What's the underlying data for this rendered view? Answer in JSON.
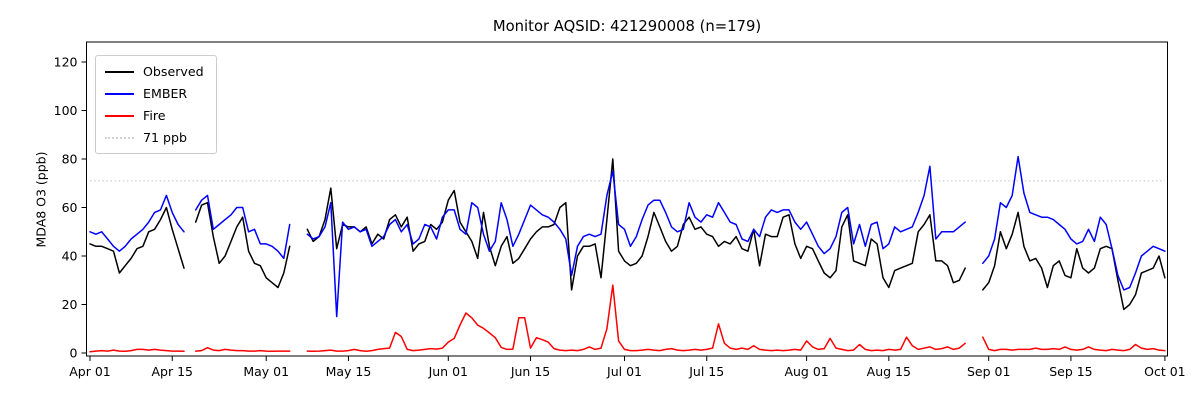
{
  "title": "Monitor AQSID: 421290008 (n=179)",
  "ylabel": "MDA8 O3 (ppb)",
  "legend": {
    "items": [
      {
        "label": "Observed",
        "color": "#000000",
        "style": "solid"
      },
      {
        "label": "EMBER",
        "color": "#0000ff",
        "style": "solid"
      },
      {
        "label": "Fire",
        "color": "#ff0000",
        "style": "solid"
      },
      {
        "label": "71 ppb",
        "color": "#d3d3d3",
        "style": "dotted"
      }
    ]
  },
  "chart_data": {
    "type": "line",
    "title": "Monitor AQSID: 421290008 (n=179)",
    "xlabel": "",
    "ylabel": "MDA8 O3 (ppb)",
    "ylim": [
      -2,
      129
    ],
    "grid": false,
    "legend_position": "upper left",
    "y_ticks": [
      0,
      20,
      40,
      60,
      80,
      100,
      120
    ],
    "x_ticks": [
      {
        "day": 0,
        "label": "Apr 01"
      },
      {
        "day": 14,
        "label": "Apr 15"
      },
      {
        "day": 30,
        "label": "May 01"
      },
      {
        "day": 44,
        "label": "May 15"
      },
      {
        "day": 61,
        "label": "Jun 01"
      },
      {
        "day": 75,
        "label": "Jun 15"
      },
      {
        "day": 91,
        "label": "Jul 01"
      },
      {
        "day": 105,
        "label": "Jul 15"
      },
      {
        "day": 122,
        "label": "Aug 01"
      },
      {
        "day": 136,
        "label": "Aug 15"
      },
      {
        "day": 153,
        "label": "Sep 01"
      },
      {
        "day": 167,
        "label": "Sep 15"
      },
      {
        "day": 183,
        "label": "Oct 01"
      }
    ],
    "threshold": {
      "value": 71,
      "label": "71 ppb",
      "color": "#d3d3d3",
      "style": "dotted"
    },
    "x_start_label": "Apr 01",
    "x_end_label": "Oct 01",
    "days_span": 183,
    "missing_days_note": "gaps at days 17, 35-36, 150-151",
    "series": [
      {
        "name": "Observed",
        "color": "#000000",
        "values": [
          45,
          44,
          44,
          43,
          42,
          33,
          36,
          39,
          43,
          44,
          50,
          51,
          55,
          60,
          51,
          43,
          35,
          null,
          54,
          61,
          62,
          48,
          37,
          40,
          46,
          52,
          56,
          42,
          37,
          36,
          31,
          29,
          27,
          33,
          44,
          null,
          null,
          51,
          46,
          48,
          55,
          68,
          43,
          53,
          52,
          52,
          50,
          52,
          45,
          49,
          47,
          55,
          57,
          52,
          56,
          42,
          45,
          46,
          53,
          51,
          54,
          63,
          67,
          54,
          50,
          46,
          39,
          58,
          44,
          36,
          44,
          48,
          37,
          39,
          43,
          47,
          50,
          52,
          52,
          53,
          60,
          62,
          26,
          40,
          44,
          44,
          45,
          31,
          55,
          80,
          42,
          38,
          36,
          37,
          40,
          48,
          58,
          52,
          46,
          42,
          44,
          53,
          56,
          51,
          52,
          49,
          48,
          44,
          46,
          45,
          48,
          43,
          42,
          51,
          36,
          49,
          48,
          48,
          56,
          57,
          45,
          39,
          44,
          43,
          38,
          33,
          31,
          34,
          52,
          57,
          38,
          37,
          36,
          47,
          45,
          31,
          27,
          34,
          35,
          36,
          37,
          50,
          53,
          57,
          38,
          38,
          36,
          29,
          30,
          35,
          null,
          null,
          26,
          29,
          36,
          50,
          43,
          49,
          58,
          44,
          38,
          39,
          35,
          27,
          36,
          38,
          32,
          31,
          43,
          35,
          33,
          35,
          43,
          44,
          43,
          30,
          18,
          20,
          24,
          33,
          34,
          35,
          40,
          31
        ]
      },
      {
        "name": "EMBER",
        "color": "#0000ff",
        "values": [
          50,
          49,
          50,
          47,
          44,
          42,
          44,
          47,
          49,
          51,
          54,
          58,
          59,
          65,
          58,
          53,
          50,
          null,
          59,
          63,
          65,
          51,
          53,
          55,
          57,
          60,
          60,
          50,
          51,
          45,
          45,
          44,
          42,
          39,
          53,
          null,
          null,
          49,
          47,
          48,
          52,
          62,
          15,
          54,
          51,
          52,
          50,
          51,
          44,
          46,
          48,
          53,
          55,
          50,
          53,
          45,
          47,
          53,
          52,
          47,
          56,
          59,
          59,
          51,
          49,
          62,
          60,
          49,
          42,
          46,
          62,
          55,
          44,
          49,
          55,
          61,
          59,
          57,
          56,
          54,
          51,
          47,
          32,
          44,
          48,
          49,
          48,
          49,
          65,
          75,
          53,
          51,
          44,
          48,
          55,
          61,
          63,
          63,
          58,
          52,
          50,
          51,
          62,
          56,
          54,
          57,
          56,
          62,
          58,
          54,
          53,
          47,
          46,
          51,
          48,
          56,
          59,
          58,
          59,
          59,
          54,
          51,
          54,
          49,
          44,
          41,
          43,
          48,
          58,
          60,
          45,
          53,
          44,
          53,
          54,
          43,
          45,
          52,
          50,
          51,
          52,
          58,
          65,
          77,
          47,
          50,
          50,
          50,
          52,
          54,
          null,
          null,
          37,
          40,
          47,
          62,
          60,
          65,
          81,
          66,
          58,
          57,
          56,
          56,
          55,
          53,
          51,
          47,
          45,
          46,
          51,
          46,
          56,
          53,
          43,
          32,
          26,
          27,
          33,
          40,
          42,
          44,
          43,
          42
        ]
      },
      {
        "name": "Fire",
        "color": "#ff0000",
        "values": [
          0.5,
          0.8,
          1,
          0.8,
          1.2,
          0.8,
          0.7,
          1,
          1.5,
          1.5,
          1.2,
          1.5,
          1.2,
          1,
          0.8,
          0.8,
          0.7,
          null,
          0.8,
          1,
          2.2,
          1.2,
          1,
          1.5,
          1.2,
          1,
          1,
          0.8,
          0.8,
          1,
          0.8,
          0.7,
          0.8,
          0.8,
          0.8,
          null,
          null,
          0.8,
          0.7,
          0.8,
          1,
          1.2,
          0.8,
          0.8,
          1,
          1.5,
          1,
          0.7,
          1,
          1.5,
          1.8,
          2,
          8.5,
          6.8,
          1.5,
          1,
          1.2,
          1.5,
          1.8,
          1.6,
          2,
          4.5,
          6,
          11.5,
          16.5,
          14.5,
          11.5,
          10.2,
          8.3,
          6.3,
          2.3,
          1.5,
          1.6,
          14.5,
          14.5,
          2,
          6.3,
          5.5,
          4.5,
          1.8,
          1.2,
          1,
          1.2,
          1,
          1.5,
          2.5,
          1.5,
          2,
          10,
          28,
          5,
          1.5,
          1,
          1,
          1.2,
          1.5,
          1.2,
          1,
          1.5,
          1.8,
          1.2,
          1,
          1.2,
          1.5,
          1.2,
          1.5,
          2,
          12,
          4,
          2,
          1.5,
          2,
          1.5,
          3,
          1.5,
          1.2,
          1,
          1.2,
          1,
          1.2,
          1.5,
          1.2,
          5,
          2.5,
          1.5,
          1.8,
          6,
          2,
          1.5,
          1,
          1.2,
          3.5,
          1.5,
          1,
          1.2,
          1,
          1.5,
          1.2,
          1.5,
          6.5,
          3,
          1.5,
          2,
          2.5,
          1.5,
          1.8,
          2.5,
          1.5,
          2,
          4,
          null,
          null,
          6.5,
          1.5,
          1,
          1.5,
          1.5,
          1.2,
          1.5,
          1.5,
          1.5,
          2,
          1.5,
          1.5,
          1.8,
          1.5,
          2.5,
          1.5,
          1.2,
          1.5,
          2.5,
          1.5,
          1.2,
          1,
          1.5,
          1.2,
          1,
          1.5,
          3.5,
          2,
          1.5,
          1.8,
          1.2,
          1
        ]
      }
    ]
  }
}
